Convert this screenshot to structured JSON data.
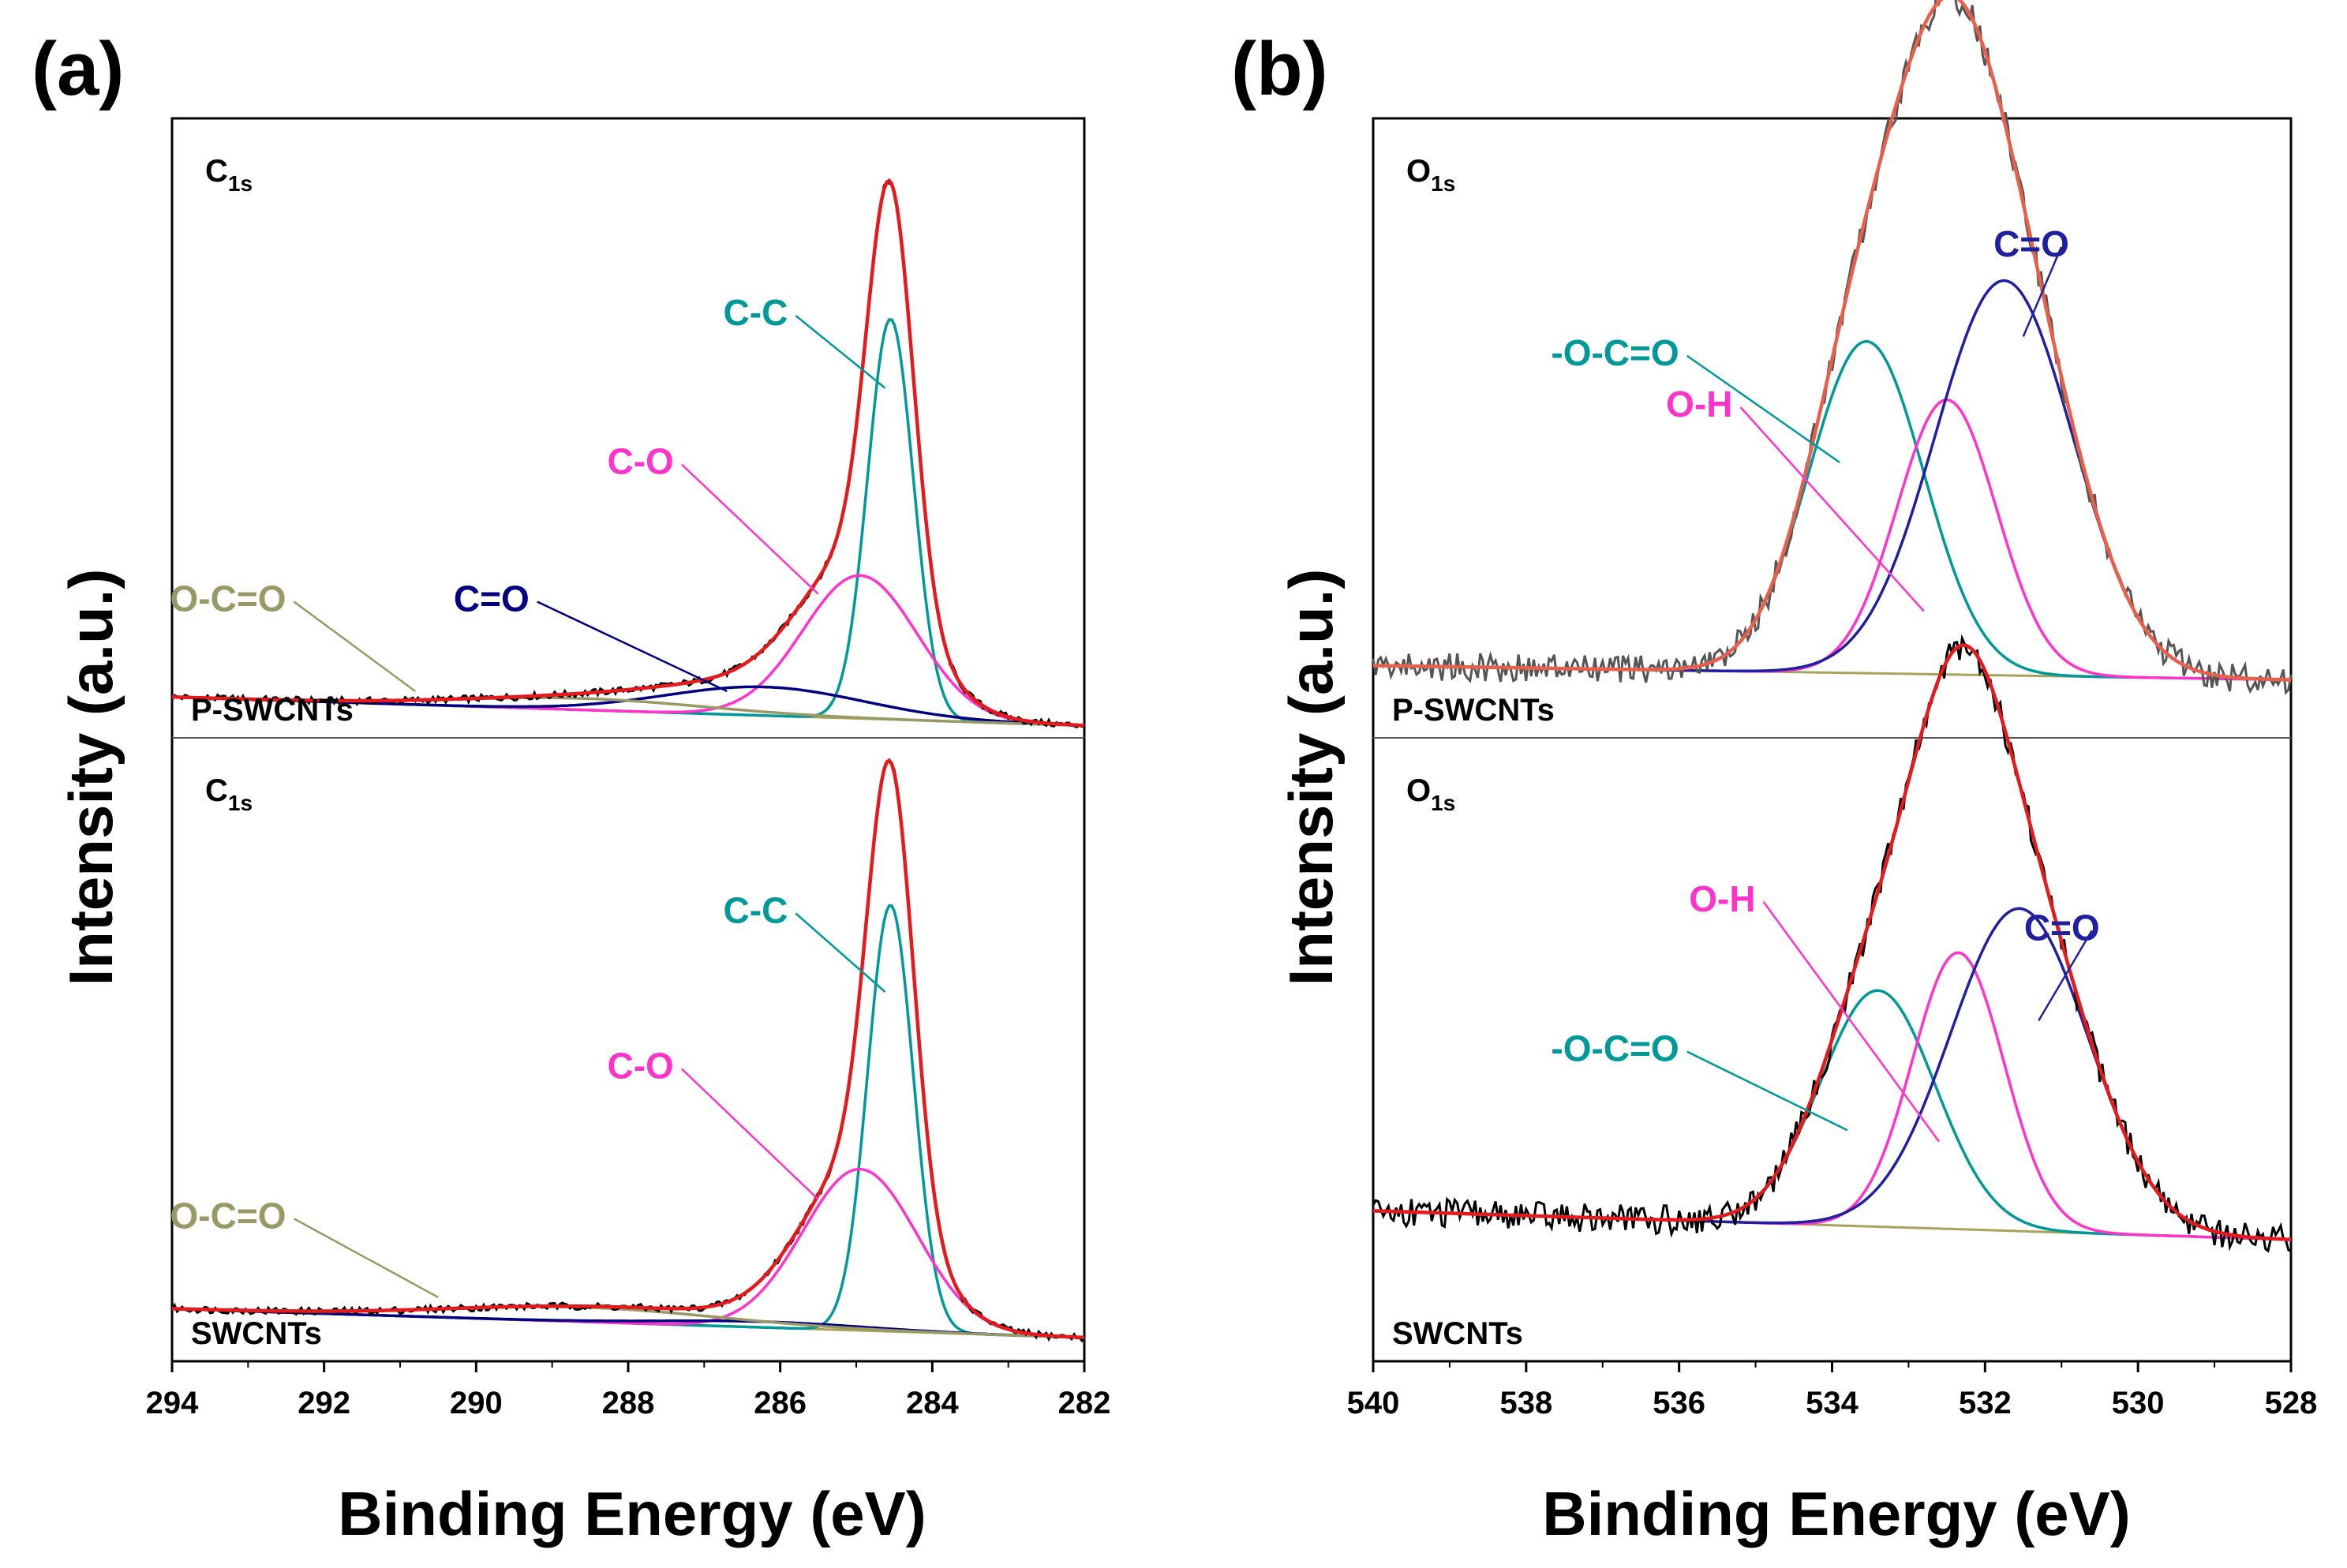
{
  "figure": {
    "panels": [
      {
        "letter": "(a)",
        "xlabel": "Binding Energy (eV)",
        "ylabel": "Intensity (a.u.)"
      },
      {
        "letter": "(b)",
        "xlabel": "Binding Energy (eV)",
        "ylabel": "Intensity (a.u.)"
      }
    ]
  },
  "chart_data": [
    {
      "type": "line",
      "panel": "(a)",
      "xlabel": "Binding Energy (eV)",
      "ylabel": "Intensity (a.u.)",
      "xlim": [
        294,
        282
      ],
      "xticks": [
        294,
        292,
        290,
        288,
        286,
        284,
        282
      ],
      "ylim": [
        0,
        1
      ],
      "subplots": [
        {
          "element_main": "C",
          "element_sub": "1s",
          "sample": "P-SWCNTs",
          "baseline": {
            "start": 0.03,
            "end": -0.02
          },
          "raw_color": "#000000",
          "envelope_color": "#e41a1c",
          "peaks": [
            {
              "name": "C-C",
              "center": 284.55,
              "height": 0.7,
              "width": 0.3,
              "color": "#009999",
              "label_at": [
                285.9,
                0.68
              ],
              "arrow_to": [
                284.62,
                0.57
              ]
            },
            {
              "name": "C-O",
              "center": 284.95,
              "height": 0.25,
              "width": 0.75,
              "color": "#ff33cc",
              "label_at": [
                287.4,
                0.42
              ],
              "arrow_to": [
                285.5,
                0.21
              ]
            },
            {
              "name": "C=O",
              "center": 286.2,
              "height": 0.05,
              "width": 1.3,
              "color": "#000080",
              "label_at": [
                289.3,
                0.18
              ],
              "arrow_to": [
                286.7,
                0.04
              ]
            },
            {
              "name": "O-C=O",
              "center": 288.6,
              "height": 0.02,
              "width": 1.6,
              "color": "#999966",
              "label_at": [
                292.5,
                0.18
              ],
              "arrow_to": [
                290.8,
                0.04
              ]
            }
          ]
        },
        {
          "element_main": "C",
          "element_sub": "1s",
          "sample": "SWCNTs",
          "baseline": {
            "start": 0.05,
            "end": 0.0
          },
          "raw_color": "#000000",
          "envelope_color": "#e41a1c",
          "peaks": [
            {
              "name": "C-C",
              "center": 284.55,
              "height": 0.74,
              "width": 0.3,
              "color": "#009999",
              "label_at": [
                285.9,
                0.72
              ],
              "arrow_to": [
                284.62,
                0.6
              ]
            },
            {
              "name": "C-O",
              "center": 284.95,
              "height": 0.28,
              "width": 0.75,
              "color": "#ff33cc",
              "label_at": [
                287.4,
                0.45
              ],
              "arrow_to": [
                285.5,
                0.24
              ]
            },
            {
              "name": "C=O",
              "center": 286.2,
              "height": 0.01,
              "width": 1.3,
              "color": "#000080",
              "label_at": null,
              "arrow_to": null
            },
            {
              "name": "O-C=O",
              "center": 288.6,
              "height": 0.025,
              "width": 1.8,
              "color": "#999966",
              "label_at": [
                292.5,
                0.19
              ],
              "arrow_to": [
                290.5,
                0.07
              ]
            }
          ]
        }
      ]
    },
    {
      "type": "line",
      "panel": "(b)",
      "xlabel": "Binding Energy (eV)",
      "ylabel": "Intensity (a.u.)",
      "xlim": [
        540,
        528
      ],
      "xticks": [
        540,
        538,
        536,
        534,
        532,
        530,
        528
      ],
      "ylim": [
        0,
        1
      ],
      "subplots": [
        {
          "element_main": "O",
          "element_sub": "1s",
          "sample": "P-SWCNTs",
          "baseline": {
            "start": 0.085,
            "end": 0.06
          },
          "raw_color": "#555555",
          "envelope_color": "#e8604c",
          "peaks": [
            {
              "name": "-O-C=O",
              "center": 533.55,
              "height": 0.58,
              "width": 0.75,
              "color": "#009999",
              "label_at": [
                536.0,
                0.61
              ],
              "arrow_to": [
                533.9,
                0.44
              ]
            },
            {
              "name": "O-H",
              "center": 532.5,
              "height": 0.48,
              "width": 0.65,
              "color": "#ff33cc",
              "label_at": [
                535.3,
                0.52
              ],
              "arrow_to": [
                532.8,
                0.18
              ]
            },
            {
              "name": "C=O",
              "center": 531.75,
              "height": 0.69,
              "width": 0.9,
              "color": "#1f1fa0",
              "label_at": [
                530.9,
                0.8
              ],
              "arrow_to": [
                531.5,
                0.66
              ]
            }
          ]
        },
        {
          "element_main": "O",
          "element_sub": "1s",
          "sample": "SWCNTs",
          "baseline": {
            "start": 0.22,
            "end": 0.17
          },
          "raw_color": "#000000",
          "envelope_color": "#e41a1c",
          "peaks": [
            {
              "name": "-O-C=O",
              "center": 533.4,
              "height": 0.41,
              "width": 0.75,
              "color": "#009999",
              "label_at": [
                536.0,
                0.48
              ],
              "arrow_to": [
                533.8,
                0.36
              ]
            },
            {
              "name": "O-H",
              "center": 532.35,
              "height": 0.48,
              "width": 0.6,
              "color": "#ff33cc",
              "label_at": [
                535.0,
                0.74
              ],
              "arrow_to": [
                532.6,
                0.34
              ]
            },
            {
              "name": "C=O",
              "center": 531.55,
              "height": 0.56,
              "width": 0.9,
              "color": "#1f1fa0",
              "label_at": [
                530.5,
                0.69
              ],
              "arrow_to": [
                531.3,
                0.55
              ]
            }
          ]
        }
      ]
    }
  ]
}
